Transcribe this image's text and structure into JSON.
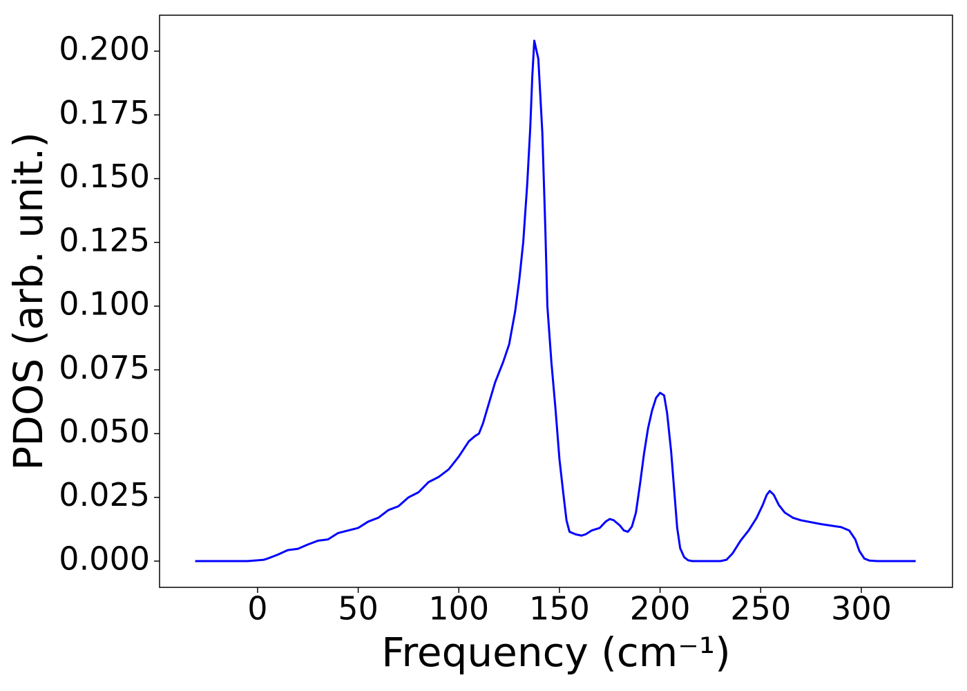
{
  "chart_data": {
    "type": "line",
    "x_label": "Frequency (cm⁻¹)",
    "y_label": "PDOS (arb. unit.)",
    "xlim": [
      -48.7,
      345.3
    ],
    "ylim": [
      -0.0103,
      0.2141
    ],
    "xticks": [
      0,
      50,
      100,
      150,
      200,
      250,
      300
    ],
    "yticks": [
      {
        "value": 0,
        "label": "0.000"
      },
      {
        "value": 0.025,
        "label": "0.025"
      },
      {
        "value": 0.05,
        "label": "0.050"
      },
      {
        "value": 0.075,
        "label": "0.075"
      },
      {
        "value": 0.1,
        "label": "0.100"
      },
      {
        "value": 0.125,
        "label": "0.125"
      },
      {
        "value": 0.15,
        "label": "0.150"
      },
      {
        "value": 0.175,
        "label": "0.175"
      },
      {
        "value": 0.2,
        "label": "0.200"
      }
    ],
    "grid": false,
    "series": [
      {
        "color": "#0000ff",
        "x": [
          -31,
          -5,
          0,
          3,
          5,
          10,
          15,
          20,
          25,
          30,
          35,
          40,
          45,
          50,
          55,
          60,
          65,
          70,
          75,
          80,
          85,
          90,
          95,
          100,
          105,
          108,
          110,
          112,
          115,
          118,
          122,
          125,
          128,
          130,
          132,
          134,
          135.5,
          136.5,
          137.5,
          139.5,
          141.5,
          143,
          144,
          146,
          148,
          150,
          152,
          153.5,
          155,
          158,
          161,
          163,
          166,
          170,
          173,
          175,
          177,
          180,
          182,
          184,
          186,
          188,
          190,
          192,
          194,
          196,
          198,
          200,
          202,
          203.5,
          205.5,
          207,
          208.5,
          210,
          212,
          214,
          216,
          230,
          233,
          236,
          240,
          244,
          248,
          251,
          253,
          254.5,
          256.5,
          259,
          262,
          266,
          270,
          280,
          290,
          294,
          297,
          299,
          301.5,
          304,
          308,
          327
        ],
        "values": [
          0,
          0,
          0.0003,
          0.0005,
          0.001,
          0.0025,
          0.0043,
          0.0048,
          0.0065,
          0.008,
          0.0085,
          0.011,
          0.012,
          0.013,
          0.0155,
          0.017,
          0.02,
          0.0215,
          0.025,
          0.027,
          0.031,
          0.033,
          0.036,
          0.041,
          0.047,
          0.049,
          0.05,
          0.054,
          0.062,
          0.07,
          0.078,
          0.085,
          0.098,
          0.11,
          0.125,
          0.148,
          0.17,
          0.19,
          0.2041,
          0.197,
          0.168,
          0.13,
          0.1,
          0.078,
          0.06,
          0.04,
          0.026,
          0.016,
          0.0115,
          0.0105,
          0.01,
          0.0105,
          0.012,
          0.013,
          0.0155,
          0.0165,
          0.016,
          0.014,
          0.012,
          0.0115,
          0.0135,
          0.019,
          0.03,
          0.042,
          0.052,
          0.059,
          0.064,
          0.066,
          0.065,
          0.058,
          0.043,
          0.028,
          0.013,
          0.005,
          0.0015,
          0.0003,
          0,
          0,
          0.0005,
          0.003,
          0.008,
          0.012,
          0.017,
          0.022,
          0.026,
          0.0275,
          0.026,
          0.022,
          0.019,
          0.017,
          0.016,
          0.0145,
          0.0133,
          0.012,
          0.0085,
          0.004,
          0.001,
          0.0002,
          0,
          0
        ]
      }
    ]
  }
}
